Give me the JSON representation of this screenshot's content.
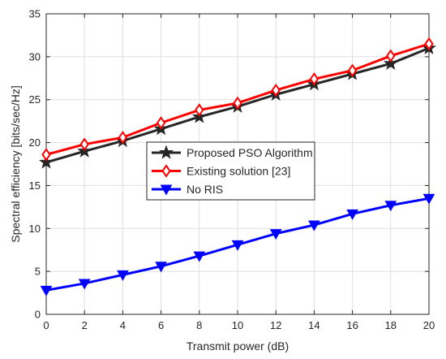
{
  "chart_data": {
    "type": "line",
    "title": "",
    "xlabel": "Transmit power (dB)",
    "ylabel": "Spectral efficiency [bits/sec/Hz]",
    "xlim": [
      0,
      20
    ],
    "ylim": [
      0,
      35
    ],
    "xticks": [
      0,
      2,
      4,
      6,
      8,
      10,
      12,
      14,
      16,
      18,
      20
    ],
    "yticks": [
      0,
      5,
      10,
      15,
      20,
      25,
      30,
      35
    ],
    "grid": true,
    "legend_position": "center",
    "x": [
      0,
      2,
      4,
      6,
      8,
      10,
      12,
      14,
      16,
      18,
      20
    ],
    "series": [
      {
        "name": "Proposed PSO Algorithm",
        "color": "#262626",
        "marker": "star",
        "values": [
          17.7,
          19.0,
          20.2,
          21.6,
          23.0,
          24.2,
          25.6,
          26.8,
          28.0,
          29.2,
          31.0
        ]
      },
      {
        "name": "Existing solution [23]",
        "color": "#ff0000",
        "marker": "diamond",
        "values": [
          18.6,
          19.8,
          20.6,
          22.3,
          23.8,
          24.6,
          26.1,
          27.4,
          28.4,
          30.1,
          31.5
        ]
      },
      {
        "name": "No RIS",
        "color": "#0000ff",
        "marker": "triangle-down",
        "values": [
          2.8,
          3.6,
          4.6,
          5.6,
          6.8,
          8.1,
          9.4,
          10.4,
          11.7,
          12.7,
          13.5
        ]
      }
    ]
  }
}
